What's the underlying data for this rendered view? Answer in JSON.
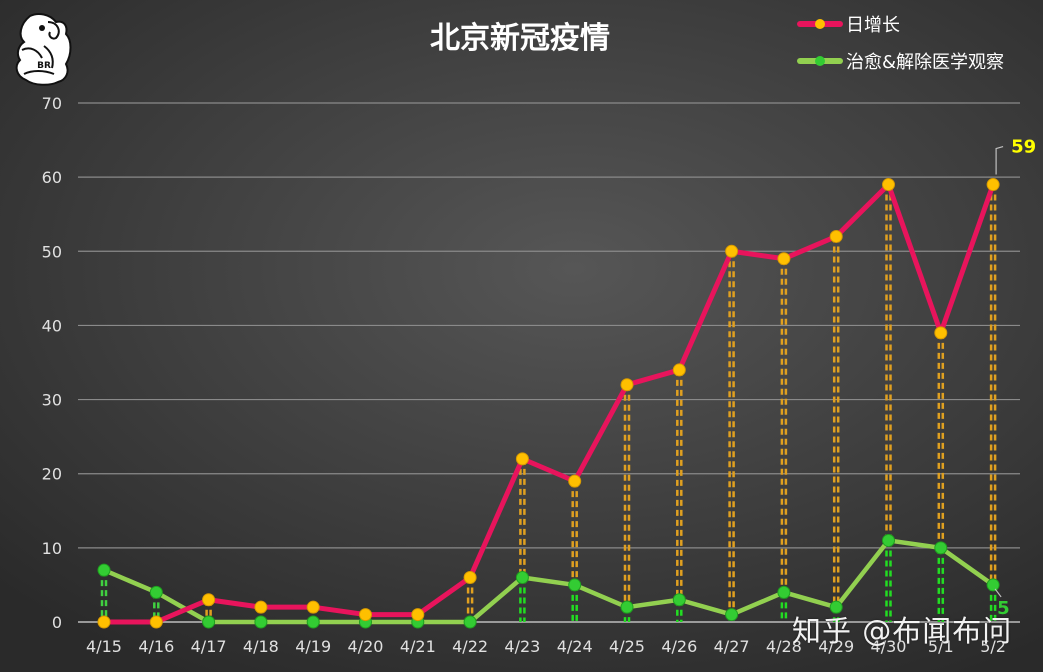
{
  "chart_data": {
    "type": "line",
    "title": "北京新冠疫情",
    "categories": [
      "4/15",
      "4/16",
      "4/17",
      "4/18",
      "4/19",
      "4/20",
      "4/21",
      "4/22",
      "4/23",
      "4/24",
      "4/25",
      "4/26",
      "4/27",
      "4/28",
      "4/29",
      "4/30",
      "5/1",
      "5/2"
    ],
    "series": [
      {
        "name": "日增长",
        "color": "#e8145c",
        "marker_color": "#ffc000",
        "values": [
          0,
          0,
          3,
          2,
          2,
          1,
          1,
          6,
          22,
          19,
          32,
          34,
          50,
          49,
          52,
          59,
          39,
          59
        ]
      },
      {
        "name": "治愈&解除医学观察",
        "color": "#92d050",
        "marker_color": "#33cc33",
        "values": [
          7,
          4,
          0,
          0,
          0,
          0,
          0,
          0,
          6,
          5,
          2,
          3,
          1,
          4,
          2,
          11,
          10,
          5
        ]
      }
    ],
    "ylim": [
      0,
      70
    ],
    "yticks": [
      0,
      10,
      20,
      30,
      40,
      50,
      60,
      70
    ],
    "grid": true,
    "legend_position": "top-right",
    "data_labels": [
      {
        "series": 0,
        "index": 17,
        "text": "59",
        "color": "#ffff00"
      },
      {
        "series": 1,
        "index": 17,
        "text": "5",
        "color": "#33cc33"
      }
    ]
  },
  "logo": {
    "text": "BR"
  },
  "watermark": "知乎 @布闻布问"
}
